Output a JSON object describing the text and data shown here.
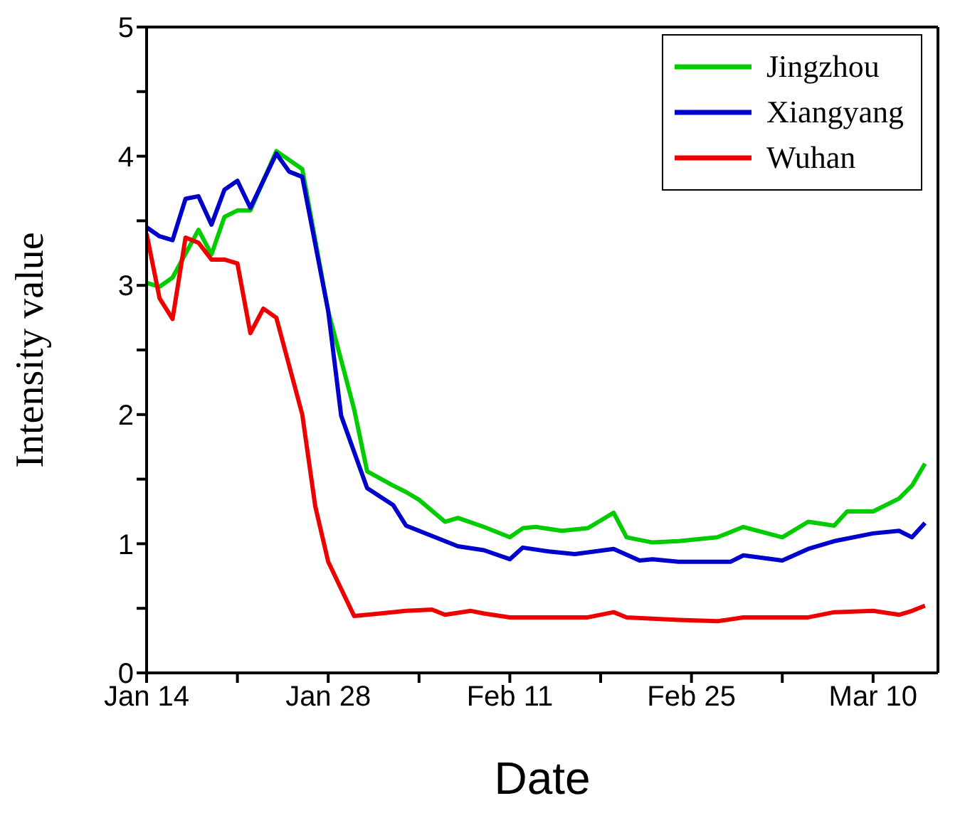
{
  "chart_data": {
    "type": "line",
    "xlabel": "Date",
    "ylabel": "Intensity value",
    "xlim": [
      "--01-14",
      "--03-15"
    ],
    "xticks": [
      {
        "value": "--01-14",
        "label": "Jan 14"
      },
      {
        "value": "--01-21",
        "label": null
      },
      {
        "value": "--01-28",
        "label": "Jan 28"
      },
      {
        "value": "--02-04",
        "label": null
      },
      {
        "value": "--02-11",
        "label": "Feb 11"
      },
      {
        "value": "--02-18",
        "label": null
      },
      {
        "value": "--02-25",
        "label": "Feb 25"
      },
      {
        "value": "--03-03",
        "label": null
      },
      {
        "value": "--03-10",
        "label": "Mar 10"
      }
    ],
    "ylim": [
      0,
      5
    ],
    "yticks": [
      0,
      {
        "value": 0.5,
        "label": null
      },
      1,
      {
        "value": 1.5,
        "label": null
      },
      2,
      {
        "value": 2.5,
        "label": null
      },
      3,
      {
        "value": 3.5,
        "label": null
      },
      4,
      {
        "value": 4.5,
        "label": null
      },
      5
    ],
    "legend": "top right",
    "marker": "none",
    "line_style": "solid",
    "series": [
      {
        "name": "Jingzhou",
        "color": "#00cc00",
        "x": [
          "--01-14",
          "--01-15",
          "--01-16",
          "--01-18",
          "--01-19",
          "--01-20",
          "--01-21",
          "--01-22",
          "--01-24",
          "--01-26",
          "--01-28",
          "--01-30",
          "--01-31",
          "--02-02",
          "--02-03",
          "--02-04",
          "--02-06",
          "--02-07",
          "--02-09",
          "--02-11",
          "--02-12",
          "--02-13",
          "--02-15",
          "--02-17",
          "--02-18",
          "--02-19",
          "--02-20",
          "--02-22",
          "--02-24",
          "--02-27",
          "--02-29",
          "--03-03",
          "--03-05",
          "--03-07",
          "--03-08",
          "--03-10",
          "--03-12",
          "--03-13",
          "--03-14"
        ],
        "values": [
          3.02,
          2.99,
          3.06,
          3.43,
          3.24,
          3.53,
          3.58,
          3.58,
          4.04,
          3.9,
          2.8,
          2.04,
          1.56,
          1.45,
          1.4,
          1.34,
          1.17,
          1.2,
          1.13,
          1.05,
          1.12,
          1.13,
          1.1,
          1.12,
          1.18,
          1.24,
          1.05,
          1.01,
          1.02,
          1.05,
          1.13,
          1.05,
          1.17,
          1.14,
          1.25,
          1.25,
          1.35,
          1.45,
          1.62
        ]
      },
      {
        "name": "Xiangyang",
        "color": "#0000cc",
        "x": [
          "--01-14",
          "--01-15",
          "--01-16",
          "--01-17",
          "--01-18",
          "--01-19",
          "--01-20",
          "--01-21",
          "--01-22",
          "--01-24",
          "--01-25",
          "--01-26",
          "--01-28",
          "--01-29",
          "--01-31",
          "--02-02",
          "--02-03",
          "--02-06",
          "--02-07",
          "--02-09",
          "--02-11",
          "--02-12",
          "--02-14",
          "--02-16",
          "--02-19",
          "--02-21",
          "--02-22",
          "--02-24",
          "--02-25",
          "--02-28",
          "--02-29",
          "--03-03",
          "--03-05",
          "--03-07",
          "--03-10",
          "--03-12",
          "--03-13",
          "--03-14"
        ],
        "values": [
          3.45,
          3.38,
          3.35,
          3.67,
          3.69,
          3.47,
          3.74,
          3.81,
          3.6,
          4.02,
          3.88,
          3.84,
          2.8,
          1.99,
          1.43,
          1.3,
          1.14,
          1.02,
          0.98,
          0.95,
          0.88,
          0.97,
          0.94,
          0.92,
          0.96,
          0.87,
          0.88,
          0.86,
          0.86,
          0.86,
          0.91,
          0.87,
          0.96,
          1.02,
          1.08,
          1.1,
          1.05,
          1.16
        ]
      },
      {
        "name": "Wuhan",
        "color": "#ee0000",
        "x": [
          "--01-14",
          "--01-15",
          "--01-16",
          "--01-17",
          "--01-18",
          "--01-19",
          "--01-20",
          "--01-21",
          "--01-22",
          "--01-23",
          "--01-24",
          "--01-26",
          "--01-27",
          "--01-28",
          "--01-29",
          "--01-30",
          "--02-01",
          "--02-03",
          "--02-05",
          "--02-06",
          "--02-08",
          "--02-09",
          "--02-11",
          "--02-13",
          "--02-17",
          "--02-19",
          "--02-20",
          "--02-24",
          "--02-27",
          "--02-29",
          "--03-05",
          "--03-07",
          "--03-10",
          "--03-12",
          "--03-13",
          "--03-14"
        ],
        "values": [
          3.4,
          2.9,
          2.74,
          3.37,
          3.33,
          3.2,
          3.2,
          3.17,
          2.63,
          2.82,
          2.75,
          2.0,
          1.29,
          0.86,
          0.65,
          0.44,
          0.46,
          0.48,
          0.49,
          0.45,
          0.48,
          0.46,
          0.43,
          0.43,
          0.43,
          0.47,
          0.43,
          0.41,
          0.4,
          0.43,
          0.43,
          0.47,
          0.48,
          0.45,
          0.48,
          0.52
        ]
      }
    ]
  }
}
